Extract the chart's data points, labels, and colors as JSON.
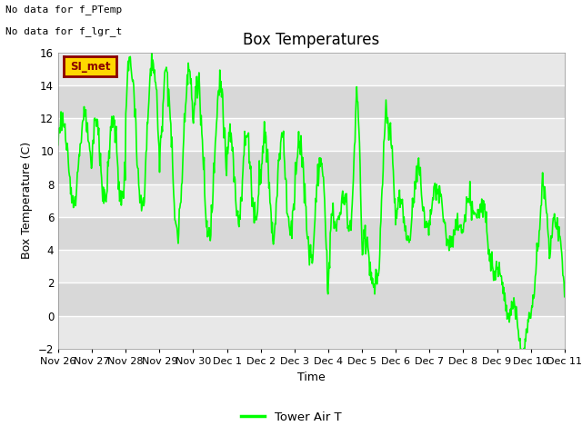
{
  "title": "Box Temperatures",
  "ylabel": "Box Temperature (C)",
  "xlabel": "Time",
  "ylim": [
    -2,
    16
  ],
  "yticks": [
    -2,
    0,
    2,
    4,
    6,
    8,
    10,
    12,
    14,
    16
  ],
  "line_color": "#00FF00",
  "line_width": 1.2,
  "bg_color": "#ffffff",
  "plot_bg_bands": [
    "#e8e8e8",
    "#d8d8d8"
  ],
  "grid_color": "#ffffff",
  "legend_label": "Tower Air T",
  "no_data_text1": "No data for f_PTemp",
  "no_data_text2": "No data for f_lgr_t",
  "si_met_label": "SI_met",
  "xtick_labels": [
    "Nov 26",
    "Nov 27",
    "Nov 28",
    "Nov 29",
    "Nov 30",
    "Dec 1",
    "Dec 2",
    "Dec 3",
    "Dec 4",
    "Dec 5",
    "Dec 6",
    "Dec 7",
    "Dec 8",
    "Dec 9",
    "Dec 10",
    "Dec 11"
  ],
  "title_fontsize": 12,
  "axis_fontsize": 9,
  "tick_fontsize": 8.5
}
